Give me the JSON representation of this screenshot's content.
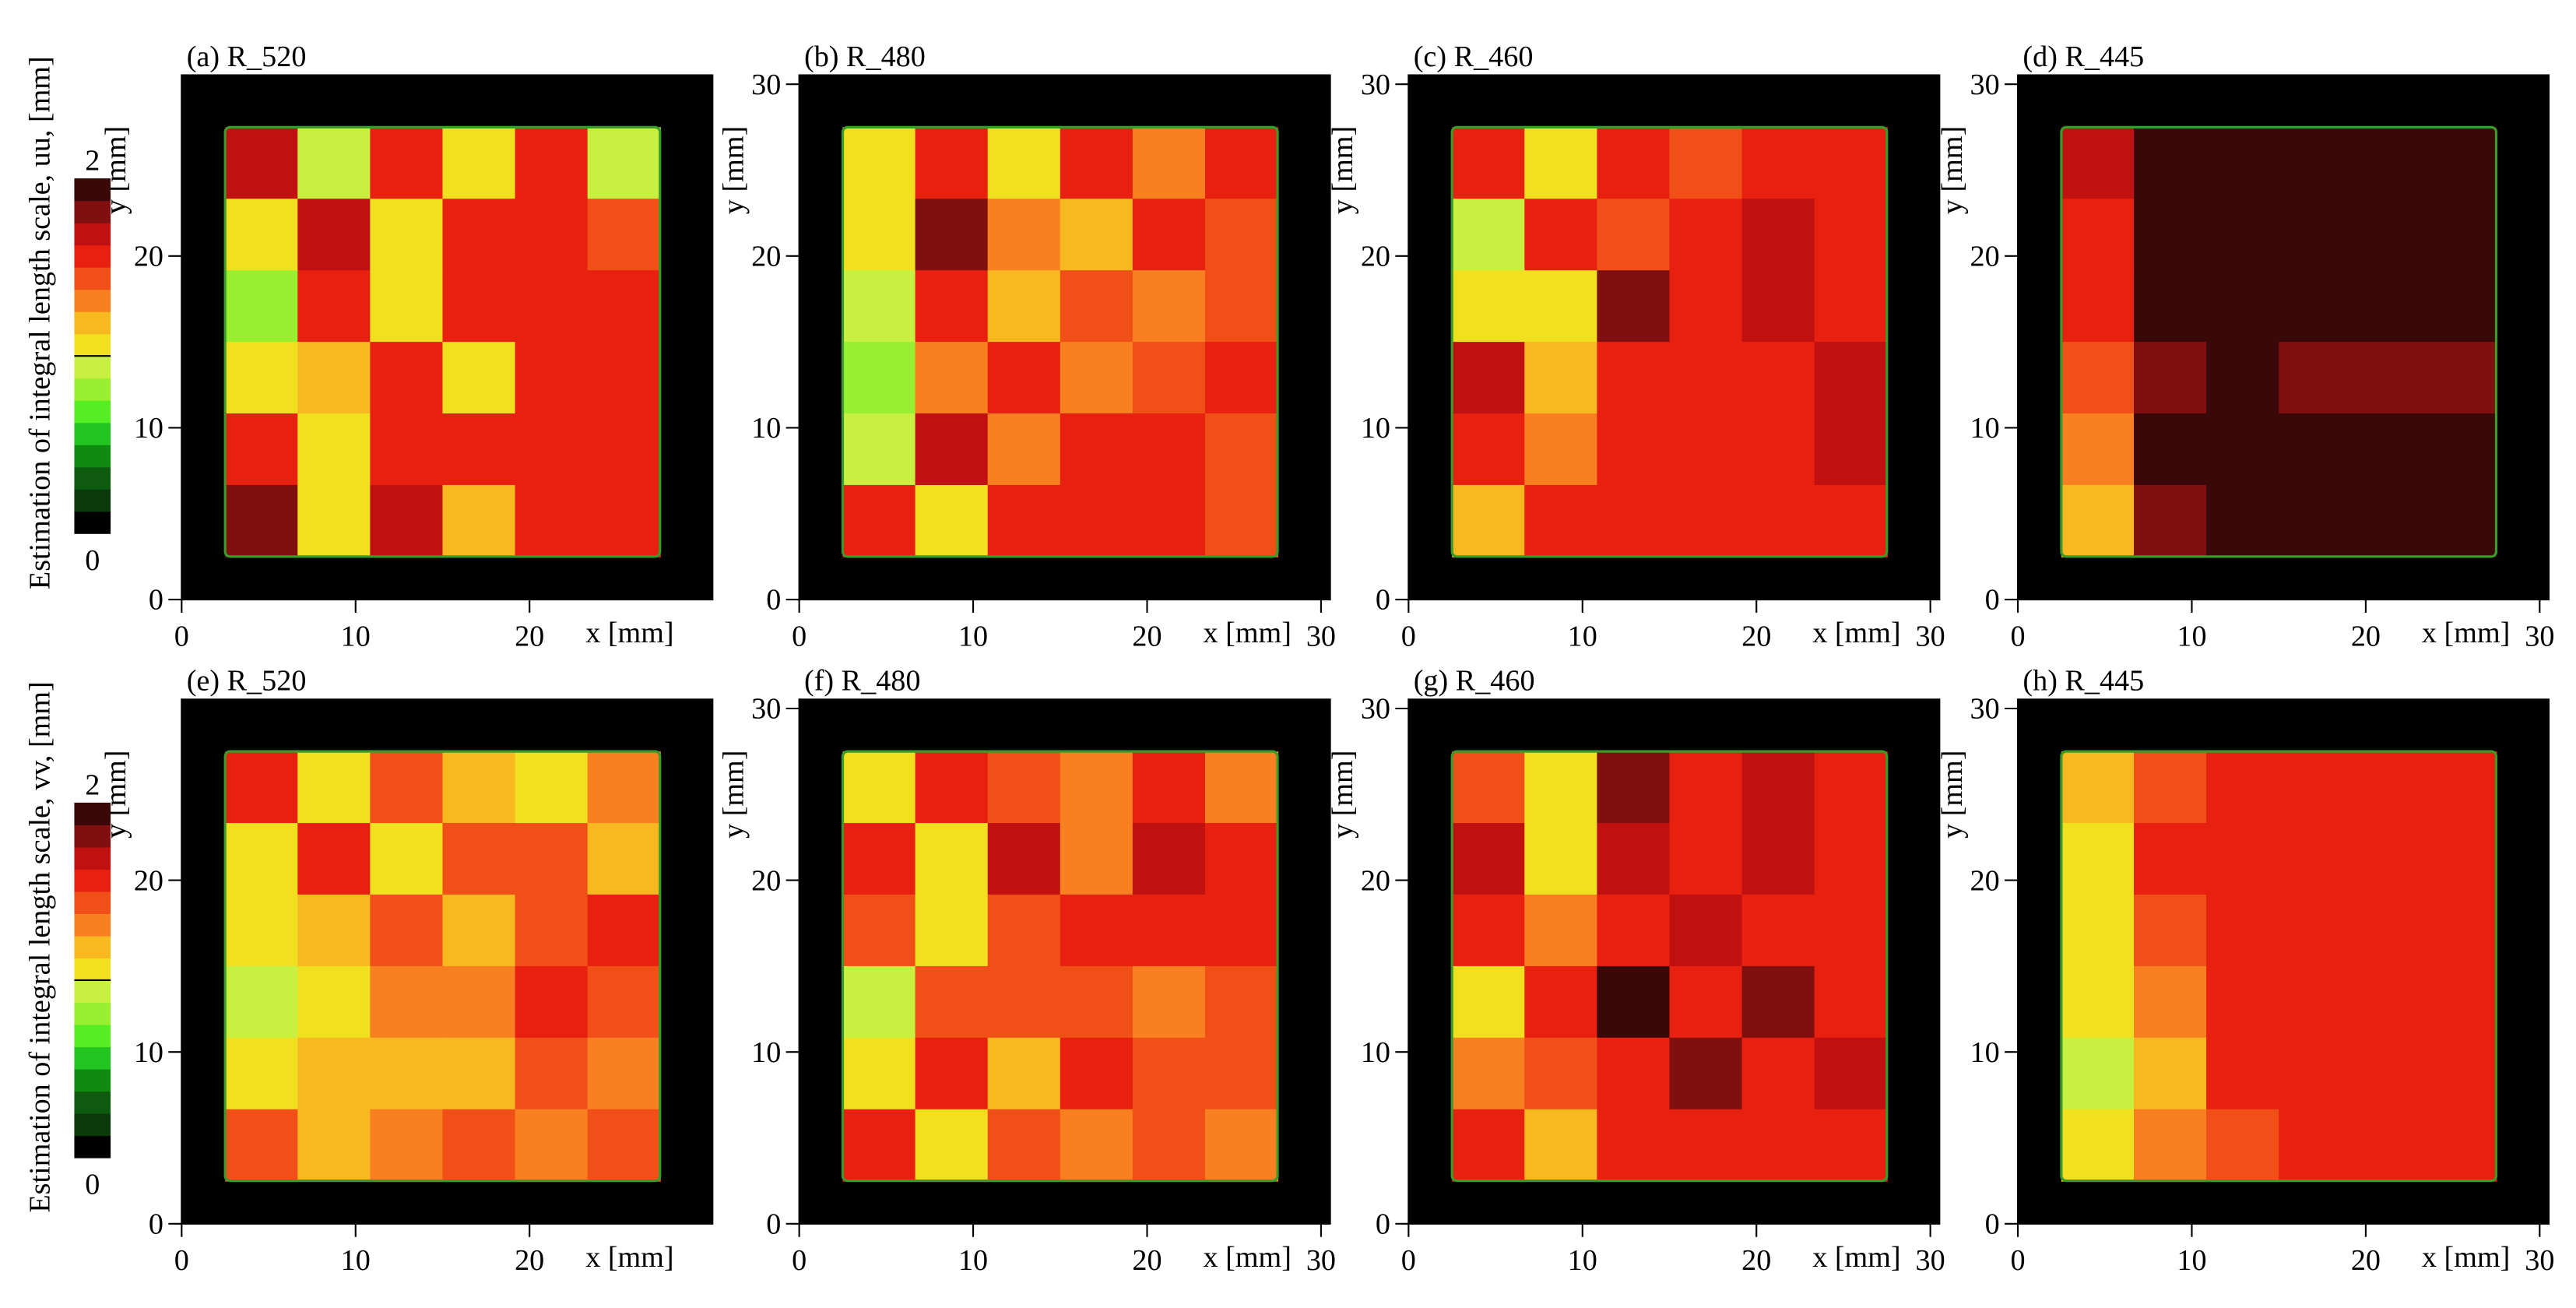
{
  "chart_data": [
    {
      "type": "heatmap",
      "title": "(a) R_520",
      "xlabel": "x [mm]",
      "ylabel": "y [mm]",
      "xlim": [
        0,
        30
      ],
      "ylim": [
        0,
        30
      ],
      "xticks": [
        0,
        10,
        20
      ],
      "yticks": [
        0,
        10,
        20
      ],
      "z": [
        [
          1.7,
          0.9,
          1.6,
          1.0,
          1.6,
          0.9
        ],
        [
          1.0,
          1.7,
          1.1,
          1.6,
          1.5,
          1.4
        ],
        [
          0.8,
          1.6,
          1.0,
          1.6,
          1.5,
          1.6
        ],
        [
          1.0,
          1.2,
          1.6,
          1.1,
          1.5,
          1.5
        ],
        [
          1.6,
          1.0,
          1.6,
          1.5,
          1.6,
          1.5
        ],
        [
          1.8,
          1.1,
          1.7,
          1.2,
          1.6,
          1.5
        ]
      ]
    },
    {
      "type": "heatmap",
      "title": "(b) R_480",
      "xlabel": "x [mm]",
      "ylabel": "y [mm]",
      "xlim": [
        0,
        30
      ],
      "ylim": [
        0,
        30
      ],
      "xticks": [
        0,
        10,
        20,
        30
      ],
      "yticks": [
        0,
        10,
        20,
        30
      ],
      "z": [
        [
          1.1,
          1.6,
          1.1,
          1.5,
          1.3,
          1.5
        ],
        [
          1.0,
          1.8,
          1.3,
          1.2,
          1.5,
          1.4
        ],
        [
          0.9,
          1.5,
          1.2,
          1.4,
          1.3,
          1.4
        ],
        [
          0.8,
          1.3,
          1.5,
          1.3,
          1.4,
          1.5
        ],
        [
          0.9,
          1.7,
          1.3,
          1.5,
          1.6,
          1.4
        ],
        [
          1.5,
          1.0,
          1.6,
          1.5,
          1.5,
          1.4
        ]
      ]
    },
    {
      "type": "heatmap",
      "title": "(c) R_460",
      "xlabel": "x [mm]",
      "ylabel": "y [mm]",
      "xlim": [
        0,
        30
      ],
      "ylim": [
        0,
        30
      ],
      "xticks": [
        0,
        10,
        20,
        30
      ],
      "yticks": [
        0,
        10,
        20,
        30
      ],
      "z": [
        [
          1.6,
          1.1,
          1.6,
          1.4,
          1.5,
          1.6
        ],
        [
          0.9,
          1.5,
          1.4,
          1.6,
          1.7,
          1.6
        ],
        [
          1.0,
          1.1,
          1.8,
          1.5,
          1.7,
          1.6
        ],
        [
          1.7,
          1.2,
          1.5,
          1.6,
          1.6,
          1.7
        ],
        [
          1.5,
          1.3,
          1.5,
          1.5,
          1.6,
          1.7
        ],
        [
          1.2,
          1.5,
          1.5,
          1.6,
          1.5,
          1.6
        ]
      ]
    },
    {
      "type": "heatmap",
      "title": "(d) R_445",
      "xlabel": "x [mm]",
      "ylabel": "y [mm]",
      "xlim": [
        0,
        30
      ],
      "ylim": [
        0,
        30
      ],
      "xticks": [
        0,
        10,
        20,
        30
      ],
      "yticks": [
        0,
        10,
        20,
        30
      ],
      "z": [
        [
          1.7,
          1.9,
          1.9,
          2.0,
          1.9,
          2.0
        ],
        [
          1.6,
          2.0,
          1.9,
          1.9,
          1.9,
          1.9
        ],
        [
          1.6,
          1.9,
          1.9,
          1.9,
          1.9,
          1.9
        ],
        [
          1.4,
          1.8,
          1.9,
          1.8,
          1.8,
          1.8
        ],
        [
          1.3,
          1.9,
          1.9,
          1.9,
          1.9,
          1.9
        ],
        [
          1.2,
          1.8,
          1.9,
          1.9,
          2.0,
          1.9
        ]
      ]
    },
    {
      "type": "heatmap",
      "title": "(e) R_520",
      "xlabel": "x [mm]",
      "ylabel": "y [mm]",
      "xlim": [
        0,
        30
      ],
      "ylim": [
        0,
        30
      ],
      "xticks": [
        0,
        10,
        20
      ],
      "yticks": [
        0,
        10,
        20
      ],
      "z": [
        [
          1.5,
          1.0,
          1.4,
          1.2,
          1.0,
          1.3
        ],
        [
          1.1,
          1.5,
          1.1,
          1.4,
          1.4,
          1.2
        ],
        [
          1.0,
          1.2,
          1.4,
          1.2,
          1.4,
          1.5
        ],
        [
          0.9,
          1.1,
          1.3,
          1.3,
          1.5,
          1.4
        ],
        [
          1.0,
          1.2,
          1.2,
          1.2,
          1.4,
          1.3
        ],
        [
          1.4,
          1.2,
          1.3,
          1.4,
          1.3,
          1.4
        ]
      ]
    },
    {
      "type": "heatmap",
      "title": "(f) R_480",
      "xlabel": "x [mm]",
      "ylabel": "y [mm]",
      "xlim": [
        0,
        30
      ],
      "ylim": [
        0,
        30
      ],
      "xticks": [
        0,
        10,
        20,
        30
      ],
      "yticks": [
        0,
        10,
        20,
        30
      ],
      "z": [
        [
          1.0,
          1.5,
          1.4,
          1.3,
          1.5,
          1.3
        ],
        [
          1.5,
          1.0,
          1.7,
          1.3,
          1.7,
          1.6
        ],
        [
          1.4,
          1.0,
          1.4,
          1.5,
          1.6,
          1.5
        ],
        [
          0.9,
          1.4,
          1.4,
          1.4,
          1.3,
          1.4
        ],
        [
          1.0,
          1.5,
          1.2,
          1.5,
          1.4,
          1.4
        ],
        [
          1.5,
          1.1,
          1.4,
          1.3,
          1.4,
          1.3
        ]
      ]
    },
    {
      "type": "heatmap",
      "title": "(g) R_460",
      "xlabel": "x [mm]",
      "ylabel": "y [mm]",
      "xlim": [
        0,
        30
      ],
      "ylim": [
        0,
        30
      ],
      "xticks": [
        0,
        10,
        20,
        30
      ],
      "yticks": [
        0,
        10,
        20,
        30
      ],
      "z": [
        [
          1.4,
          1.0,
          1.8,
          1.5,
          1.7,
          1.6
        ],
        [
          1.7,
          1.1,
          1.7,
          1.6,
          1.7,
          1.6
        ],
        [
          1.5,
          1.3,
          1.6,
          1.7,
          1.6,
          1.6
        ],
        [
          1.0,
          1.5,
          1.9,
          1.5,
          1.8,
          1.6
        ],
        [
          1.3,
          1.4,
          1.6,
          1.8,
          1.6,
          1.7
        ],
        [
          1.5,
          1.2,
          1.5,
          1.5,
          1.6,
          1.6
        ]
      ]
    },
    {
      "type": "heatmap",
      "title": "(h) R_445",
      "xlabel": "x [mm]",
      "ylabel": "y [mm]",
      "xlim": [
        0,
        30
      ],
      "ylim": [
        0,
        30
      ],
      "xticks": [
        0,
        10,
        20,
        30
      ],
      "yticks": [
        0,
        10,
        20,
        30
      ],
      "z": [
        [
          1.2,
          1.4,
          1.5,
          1.5,
          1.5,
          1.5
        ],
        [
          1.1,
          1.5,
          1.5,
          1.5,
          1.5,
          1.5
        ],
        [
          1.0,
          1.4,
          1.6,
          1.5,
          1.6,
          1.5
        ],
        [
          1.0,
          1.3,
          1.5,
          1.5,
          1.6,
          1.6
        ],
        [
          0.9,
          1.2,
          1.5,
          1.5,
          1.6,
          1.6
        ],
        [
          1.1,
          1.3,
          1.4,
          1.5,
          1.5,
          1.5
        ]
      ]
    }
  ],
  "colorbars": [
    {
      "label": "Estimation of integral length scale, uu, [mm]",
      "clim": [
        0,
        2
      ],
      "ticks": [
        0,
        2
      ]
    },
    {
      "label": "Estimation of integral length scale, vv, [mm]",
      "clim": [
        0,
        2
      ],
      "ticks": [
        0,
        2
      ]
    }
  ],
  "colormap": [
    "#000000",
    "#0a3a0a",
    "#0e5a0e",
    "#118a11",
    "#22c422",
    "#55ee22",
    "#99f030",
    "#c8f040",
    "#f0e020",
    "#f8b820",
    "#f88020",
    "#f05018",
    "#e82010",
    "#c01010",
    "#801010",
    "#3a0808"
  ]
}
